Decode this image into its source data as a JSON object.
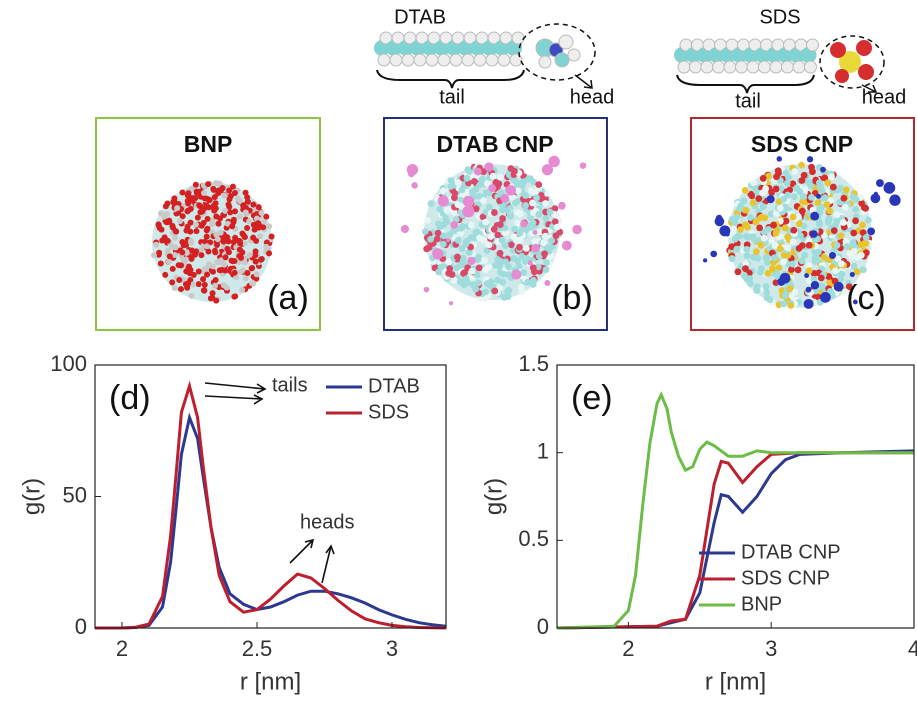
{
  "figure": {
    "molecules": [
      {
        "name": "DTAB",
        "tail": "tail",
        "head": "head"
      },
      {
        "name": "SDS",
        "tail": "tail",
        "head": "head"
      }
    ],
    "panels": [
      {
        "title": "BNP",
        "label": "(a)"
      },
      {
        "title": "DTAB CNP",
        "label": "(b)"
      },
      {
        "title": "SDS CNP",
        "label": "(c)"
      }
    ]
  },
  "chart_data": [
    {
      "type": "line",
      "panel_label": "(d)",
      "xlabel": "r [nm]",
      "ylabel": "g(r)",
      "xlim": [
        1.9,
        3.2
      ],
      "xticks": [
        2,
        2.5,
        3
      ],
      "ylim": [
        0,
        100
      ],
      "yticks": [
        0,
        50,
        100
      ],
      "legend": "upper right",
      "annotations": [
        "tails",
        "heads"
      ],
      "series": [
        {
          "name": "DTAB",
          "color": "#2b3990",
          "x": [
            1.9,
            2.0,
            2.05,
            2.1,
            2.15,
            2.18,
            2.2,
            2.22,
            2.25,
            2.28,
            2.3,
            2.33,
            2.36,
            2.4,
            2.45,
            2.5,
            2.55,
            2.6,
            2.65,
            2.7,
            2.75,
            2.8,
            2.85,
            2.9,
            2.95,
            3.0,
            3.05,
            3.1,
            3.15,
            3.2
          ],
          "values": [
            0,
            0,
            0.2,
            1,
            8,
            25,
            45,
            66,
            80,
            72,
            58,
            38,
            23,
            13,
            9,
            7,
            8,
            10,
            12.5,
            14,
            14,
            13,
            11.5,
            9.5,
            7,
            5,
            3.3,
            2,
            1.2,
            0.7
          ]
        },
        {
          "name": "SDS",
          "color": "#be1e2d",
          "x": [
            1.9,
            2.0,
            2.05,
            2.1,
            2.15,
            2.18,
            2.2,
            2.22,
            2.25,
            2.28,
            2.3,
            2.33,
            2.36,
            2.4,
            2.45,
            2.5,
            2.55,
            2.6,
            2.65,
            2.7,
            2.75,
            2.8,
            2.85,
            2.9,
            2.95,
            3.0,
            3.05,
            3.1,
            3.15,
            3.2
          ],
          "values": [
            0,
            0,
            0.3,
            1.5,
            12,
            35,
            58,
            82,
            92,
            80,
            62,
            38,
            20,
            10,
            6,
            7,
            11,
            16,
            20.5,
            19,
            15,
            10.5,
            6.5,
            3.5,
            2,
            1,
            0.5,
            0.2,
            0.1,
            0
          ]
        }
      ]
    },
    {
      "type": "line",
      "panel_label": "(e)",
      "xlabel": "r [nm]",
      "ylabel": "g(r)",
      "xlim": [
        1.5,
        4
      ],
      "xticks": [
        2,
        3,
        4
      ],
      "ylim": [
        0,
        1.5
      ],
      "yticks": [
        0,
        0.5,
        1,
        1.5
      ],
      "legend": "lower right",
      "series": [
        {
          "name": "DTAB CNP",
          "color": "#2b3990",
          "x": [
            1.5,
            2.2,
            2.3,
            2.4,
            2.5,
            2.6,
            2.65,
            2.7,
            2.8,
            2.9,
            3.0,
            3.1,
            3.2,
            3.5,
            4.0
          ],
          "values": [
            0,
            0.01,
            0.03,
            0.05,
            0.2,
            0.6,
            0.76,
            0.75,
            0.66,
            0.75,
            0.88,
            0.96,
            0.99,
            1.0,
            1.01
          ]
        },
        {
          "name": "SDS CNP",
          "color": "#be1e2d",
          "x": [
            1.5,
            2.2,
            2.3,
            2.4,
            2.5,
            2.6,
            2.65,
            2.7,
            2.8,
            2.9,
            3.0,
            3.2,
            4.0
          ],
          "values": [
            0,
            0.01,
            0.04,
            0.05,
            0.3,
            0.82,
            0.95,
            0.94,
            0.83,
            0.92,
            0.99,
            1.0,
            1.0
          ]
        },
        {
          "name": "BNP",
          "color": "#6cbd45",
          "x": [
            1.5,
            1.9,
            2.0,
            2.05,
            2.1,
            2.15,
            2.2,
            2.23,
            2.27,
            2.3,
            2.35,
            2.4,
            2.45,
            2.5,
            2.55,
            2.6,
            2.7,
            2.8,
            2.9,
            3.0,
            4.0
          ],
          "values": [
            0,
            0.01,
            0.1,
            0.3,
            0.7,
            1.05,
            1.28,
            1.33,
            1.25,
            1.12,
            0.98,
            0.9,
            0.92,
            1.02,
            1.06,
            1.04,
            0.98,
            0.98,
            1.01,
            1.0,
            1.0
          ]
        }
      ]
    }
  ]
}
